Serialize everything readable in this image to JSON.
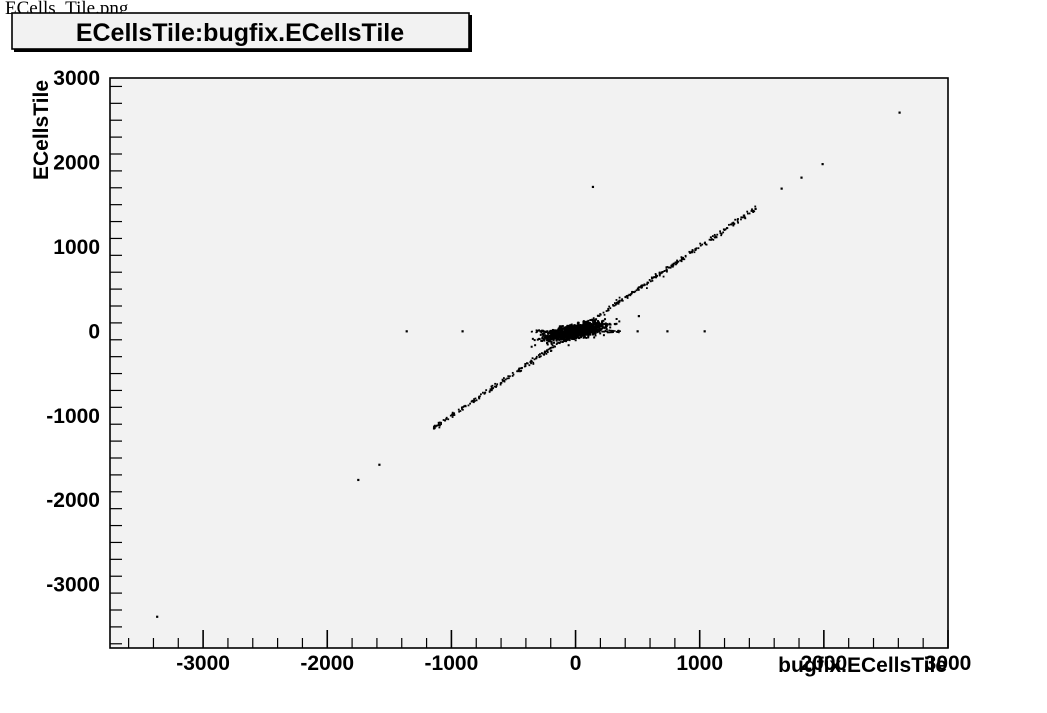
{
  "page": {
    "caption": "ECells_Tile.png",
    "background_color": "#ffffff"
  },
  "chart_data": {
    "type": "scatter",
    "title": "ECellsTile:bugfix.ECellsTile",
    "xlabel": "bugfix.ECellsTile",
    "ylabel": "ECellsTile",
    "xlim": [
      -3750,
      3000
    ],
    "ylim": [
      -3750,
      3000
    ],
    "xticks": [
      "-3000",
      "-2000",
      "-1000",
      "0",
      "1000",
      "2000",
      "3000"
    ],
    "yticks": [
      "3000",
      "2000",
      "1000",
      "0",
      "-1000",
      "-2000",
      "-3000"
    ],
    "xtick_values": [
      -3000,
      -2000,
      -1000,
      0,
      1000,
      2000,
      3000
    ],
    "ytick_values": [
      3000,
      2000,
      1000,
      0,
      -1000,
      -2000,
      -3000
    ],
    "grid": false,
    "frame_color": "#f2f2f2",
    "marker_color": "#000000",
    "cluster": {
      "center": [
        0,
        0
      ],
      "spread_x": 110,
      "spread_y": 70
    },
    "diagonal_range": [
      -1150,
      1450
    ],
    "horizontal_band": {
      "y": 0,
      "x_range": [
        -360,
        360
      ]
    },
    "outliers": [
      [
        2610,
        2590
      ],
      [
        1990,
        1980
      ],
      [
        1820,
        1820
      ],
      [
        1660,
        1690
      ],
      [
        1450,
        1450
      ],
      [
        140,
        1710
      ],
      [
        -1140,
        -1150
      ],
      [
        -1580,
        -1580
      ],
      [
        -1750,
        -1760
      ],
      [
        -3370,
        -3380
      ],
      [
        -1360,
        0
      ],
      [
        -910,
        0
      ],
      [
        510,
        180
      ],
      [
        740,
        0
      ],
      [
        1040,
        0
      ],
      [
        500,
        0
      ],
      [
        -210,
        -50
      ]
    ]
  }
}
